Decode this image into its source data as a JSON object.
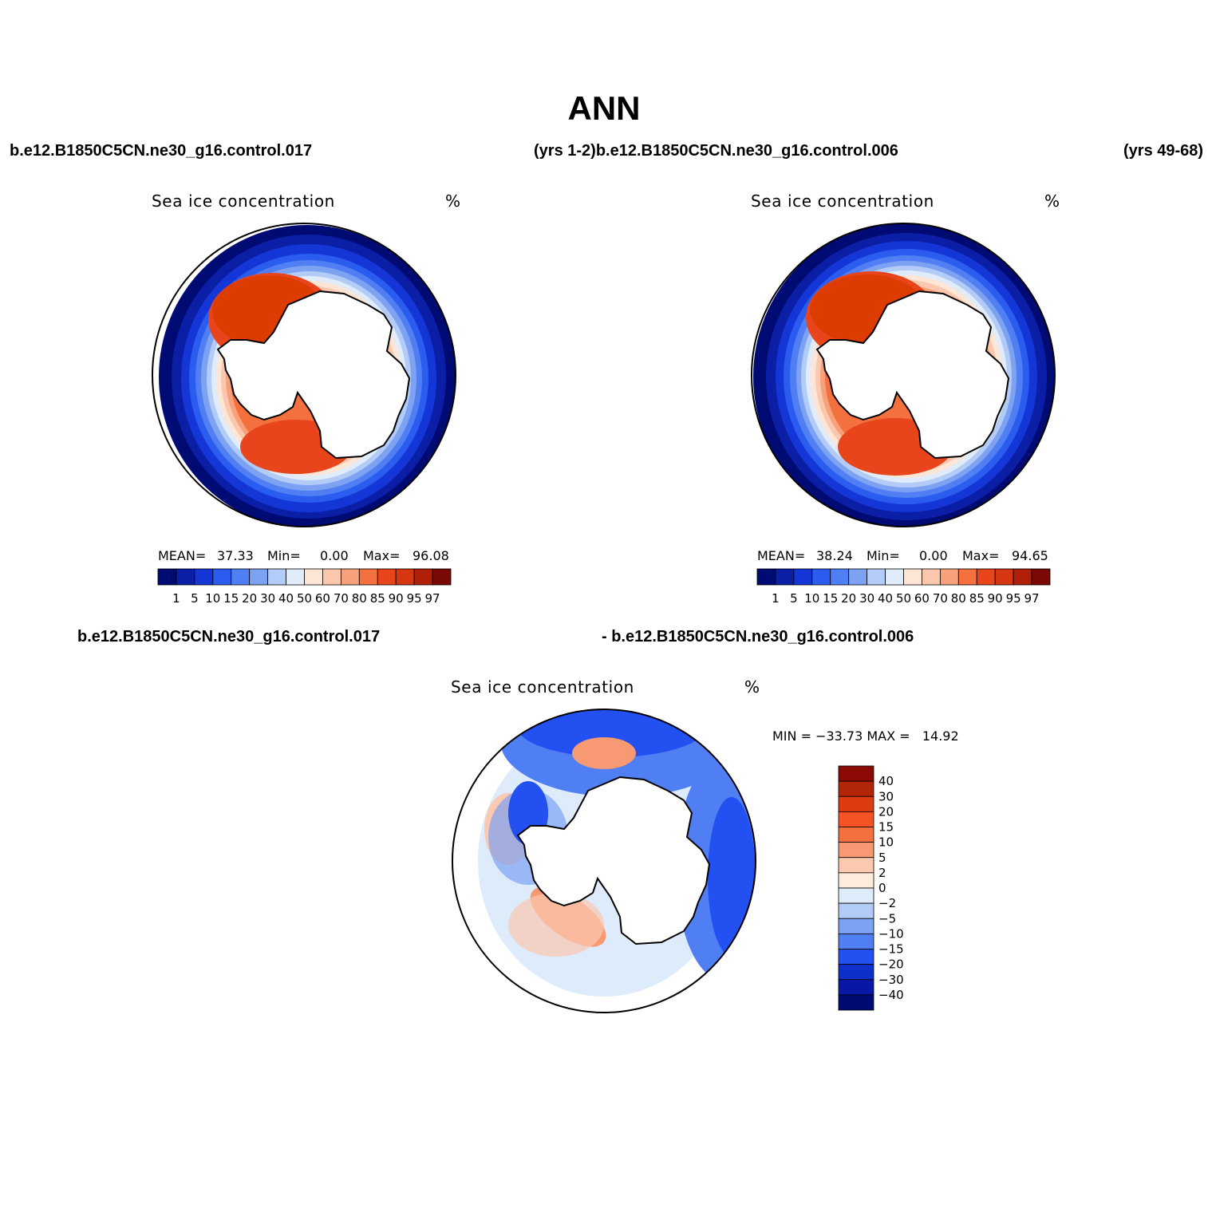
{
  "title": "ANN",
  "top_labels": {
    "case_a": "b.e12.B1850C5CN.ne30_g16.control.017",
    "case_b": "(yrs 1-2)b.e12.B1850C5CN.ne30_g16.control.006",
    "case_c": "(yrs 49-68)"
  },
  "diff_labels": {
    "left": "b.e12.B1850C5CN.ne30_g16.control.017",
    "right": "- b.e12.B1850C5CN.ne30_g16.control.006"
  },
  "panels": [
    {
      "variable": "Sea ice concentration",
      "units": "%",
      "stats": {
        "mean_label": "MEAN=",
        "mean": "37.33",
        "min_label": "Min=",
        "min": "0.00",
        "max_label": "Max=",
        "max": "96.08"
      }
    },
    {
      "variable": "Sea ice concentration",
      "units": "%",
      "stats": {
        "mean_label": "MEAN=",
        "mean": "38.24",
        "min_label": "Min=",
        "min": "0.00",
        "max_label": "Max=",
        "max": "94.65"
      }
    }
  ],
  "diff_panel": {
    "variable": "Sea ice concentration",
    "units": "%",
    "minmax": "MIN = −33.73 MAX =   14.92"
  },
  "colorbar_abs": {
    "labels": [
      "1",
      "5",
      "10",
      "15",
      "20",
      "30",
      "40",
      "50",
      "60",
      "70",
      "80",
      "85",
      "90",
      "95",
      "97"
    ],
    "colors": [
      "#000a73",
      "#0a1fa6",
      "#1436d6",
      "#2a5cf0",
      "#4f7ff2",
      "#7ea2f2",
      "#b3ccf7",
      "#e0ecfa",
      "#fde6d6",
      "#fbc7ad",
      "#f7a07c",
      "#f4703f",
      "#e8451c",
      "#d63612",
      "#b02008",
      "#7a0804"
    ]
  },
  "colorbar_diff": {
    "labels": [
      "40",
      "30",
      "20",
      "15",
      "10",
      "5",
      "2",
      "0",
      "−2",
      "−5",
      "−10",
      "−15",
      "−20",
      "−30",
      "−40"
    ],
    "colors": [
      "#8c0a05",
      "#b22508",
      "#dd3c12",
      "#f45324",
      "#f4703f",
      "#f79a73",
      "#fbc8b0",
      "#fdebdc",
      "#ddebfa",
      "#b3ccf7",
      "#7ea2f2",
      "#4f7ff2",
      "#2350f0",
      "#0e2fc9",
      "#0718a6",
      "#000a73"
    ]
  }
}
